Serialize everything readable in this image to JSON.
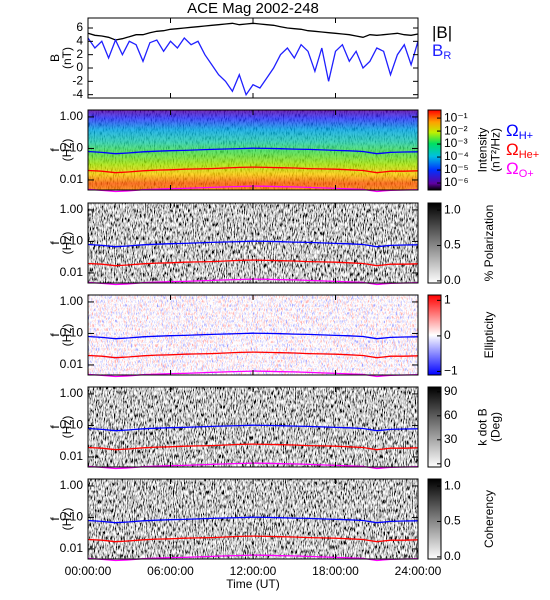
{
  "chart_data": [
    {
      "type": "line",
      "title": "ACE Mag 2002-248",
      "ylabel": [
        "B",
        "(nT)"
      ],
      "ylim": [
        -4.5,
        7.5
      ],
      "yticks": [
        -4,
        -2,
        0,
        2,
        4,
        6
      ],
      "x": [
        0,
        0.5,
        1,
        1.5,
        2,
        2.5,
        3,
        3.5,
        4,
        4.5,
        5,
        5.5,
        6,
        6.5,
        7,
        7.5,
        8,
        8.5,
        9,
        9.5,
        10,
        10.5,
        11,
        11.5,
        12,
        12.5,
        13,
        13.5,
        14,
        14.5,
        15,
        15.5,
        16,
        16.5,
        17,
        17.5,
        18,
        18.5,
        19,
        19.5,
        20,
        20.5,
        21,
        21.5,
        22,
        22.5,
        23,
        23.5,
        24
      ],
      "series": [
        {
          "name": "|B|",
          "color": "#000000",
          "values": [
            5.2,
            4.9,
            4.8,
            4.6,
            4.2,
            4.4,
            4.7,
            5.0,
            5.0,
            5.3,
            5.5,
            5.6,
            5.8,
            5.9,
            6.0,
            6.1,
            6.2,
            6.3,
            6.4,
            6.5,
            6.6,
            6.7,
            6.5,
            6.6,
            6.7,
            6.6,
            6.5,
            6.4,
            6.2,
            6.0,
            5.9,
            5.8,
            5.6,
            5.5,
            5.4,
            5.3,
            5.2,
            5.1,
            5.0,
            4.8,
            4.6,
            5.0,
            4.9,
            5.0,
            5.1,
            5.2,
            5.0,
            4.9,
            5.1
          ]
        },
        {
          "name": "B",
          "subscript": "R",
          "color": "#2020ff",
          "values": [
            4.5,
            3.0,
            4.0,
            1.5,
            4.2,
            2.0,
            4.0,
            3.5,
            1.0,
            3.8,
            4.2,
            2.5,
            4.0,
            3.0,
            4.5,
            3.5,
            4.0,
            2.0,
            0.5,
            -1.0,
            -2.0,
            -3.5,
            -1.0,
            -4.0,
            -2.5,
            -3.0,
            -1.5,
            0.0,
            2.0,
            3.0,
            1.5,
            3.5,
            2.5,
            -0.5,
            3.0,
            -2.0,
            2.5,
            3.5,
            1.0,
            2.5,
            0.0,
            1.0,
            3.0,
            2.5,
            -1.0,
            2.0,
            3.5,
            0.5,
            4.0
          ]
        }
      ]
    },
    {
      "type": "spectrogram",
      "ylabel": [
        "f",
        "(Hz)"
      ],
      "ylog": true,
      "ylim": [
        0.0048,
        1.66
      ],
      "yticks": [
        {
          "value": 0.01,
          "label": "0.01"
        },
        {
          "value": 0.1,
          "label": "0.10"
        },
        {
          "value": 1,
          "label": "1.00"
        }
      ],
      "colormap": "rainbow",
      "clog": true,
      "clim": [
        2.9e-07,
        0.42
      ],
      "cticks": [
        {
          "value": 0.1,
          "label": "10⁻¹"
        },
        {
          "value": 0.01,
          "label": "10⁻²"
        },
        {
          "value": 0.001,
          "label": "10⁻³"
        },
        {
          "value": 0.0001,
          "label": "10⁻⁴"
        },
        {
          "value": 1e-05,
          "label": "10⁻⁵"
        },
        {
          "value": 1e-06,
          "label": "10⁻⁶"
        }
      ],
      "clabel": [
        "Intensity",
        "(nT²/Hz)"
      ],
      "symbol": "Ω",
      "x": [
        0,
        1,
        2,
        3,
        4,
        5,
        6,
        7,
        8,
        9,
        10,
        11,
        12,
        13,
        14,
        15,
        16,
        17,
        18,
        19,
        20,
        21,
        22,
        23,
        24
      ],
      "series": [
        {
          "name": "H+",
          "color": "#0000ff",
          "values": [
            0.08,
            0.075,
            0.068,
            0.072,
            0.078,
            0.082,
            0.085,
            0.087,
            0.09,
            0.093,
            0.096,
            0.099,
            0.102,
            0.1,
            0.098,
            0.095,
            0.093,
            0.09,
            0.087,
            0.084,
            0.08,
            0.068,
            0.075,
            0.077,
            0.078
          ]
        },
        {
          "name": "He+",
          "color": "#ff0000",
          "values": [
            0.02,
            0.019,
            0.017,
            0.018,
            0.0195,
            0.0205,
            0.021,
            0.022,
            0.0225,
            0.023,
            0.024,
            0.025,
            0.0255,
            0.025,
            0.0245,
            0.024,
            0.023,
            0.0225,
            0.022,
            0.021,
            0.02,
            0.017,
            0.019,
            0.019,
            0.0195
          ]
        },
        {
          "name": "O+",
          "color": "#ff00ff",
          "values": [
            0.005,
            0.0047,
            0.0043,
            0.0045,
            0.0049,
            0.0051,
            0.0053,
            0.0054,
            0.0056,
            0.0058,
            0.006,
            0.0062,
            0.0064,
            0.0063,
            0.0061,
            0.006,
            0.0058,
            0.0056,
            0.0054,
            0.0052,
            0.005,
            0.0043,
            0.0047,
            0.0048,
            0.0049
          ]
        }
      ]
    },
    {
      "type": "spectrogram",
      "ylabel": [
        "f",
        "(Hz)"
      ],
      "ylog": true,
      "ylim": [
        0.0048,
        1.66
      ],
      "yticks": [
        {
          "value": 0.01,
          "label": "0.01"
        },
        {
          "value": 0.1,
          "label": "0.10"
        },
        {
          "value": 1,
          "label": "1.00"
        }
      ],
      "colormap": "gray",
      "clim": [
        -0.03,
        1.1
      ],
      "cticks": [
        {
          "value": 0,
          "label": "0.0"
        },
        {
          "value": 0.5,
          "label": "0.5"
        },
        {
          "value": 1,
          "label": "1.0"
        }
      ],
      "clabel": [
        "% Polarization"
      ]
    },
    {
      "type": "spectrogram",
      "ylabel": [
        "f",
        "(Hz)"
      ],
      "ylog": true,
      "ylim": [
        0.0048,
        1.66
      ],
      "yticks": [
        {
          "value": 0.01,
          "label": "0.01"
        },
        {
          "value": 0.1,
          "label": "0.10"
        },
        {
          "value": 1,
          "label": "1.00"
        }
      ],
      "colormap": "bwr",
      "clim": [
        -1.1,
        1.15
      ],
      "cticks": [
        {
          "value": -1,
          "label": "−1"
        },
        0,
        1
      ],
      "clabel": [
        "Ellipticity"
      ]
    },
    {
      "type": "spectrogram",
      "ylabel": [
        "f",
        "(Hz)"
      ],
      "ylog": true,
      "ylim": [
        0.0048,
        1.66
      ],
      "yticks": [
        {
          "value": 0.01,
          "label": "0.01"
        },
        {
          "value": 0.1,
          "label": "0.10"
        },
        {
          "value": 1,
          "label": "1.00"
        }
      ],
      "colormap": "gray",
      "clim": [
        -4,
        96
      ],
      "cticks": [
        0,
        30,
        60,
        90
      ],
      "clabel": [
        "k dot B",
        "(Deg)"
      ]
    },
    {
      "type": "spectrogram",
      "ylabel": [
        "f",
        "(Hz)"
      ],
      "ylog": true,
      "ylim": [
        0.0048,
        1.66
      ],
      "yticks": [
        {
          "value": 0.01,
          "label": "0.01"
        },
        {
          "value": 0.1,
          "label": "0.10"
        },
        {
          "value": 1,
          "label": "1.00"
        }
      ],
      "colormap": "gray",
      "clim": [
        -0.03,
        1.1
      ],
      "cticks": [
        {
          "value": 0,
          "label": "0.0"
        },
        {
          "value": 0.5,
          "label": "0.5"
        },
        {
          "value": 1,
          "label": "1.0"
        }
      ],
      "clabel": [
        "Coherency"
      ],
      "xlabel": "Time (UT)",
      "xlim": [
        0,
        24
      ],
      "xticks": [
        {
          "value": 0,
          "label": "00:00:00"
        },
        {
          "value": 6,
          "label": "06:00:00"
        },
        {
          "value": 12,
          "label": "12:00:00"
        },
        {
          "value": 18,
          "label": "18:00:00"
        },
        {
          "value": 24,
          "label": "24:00:00"
        }
      ]
    }
  ]
}
